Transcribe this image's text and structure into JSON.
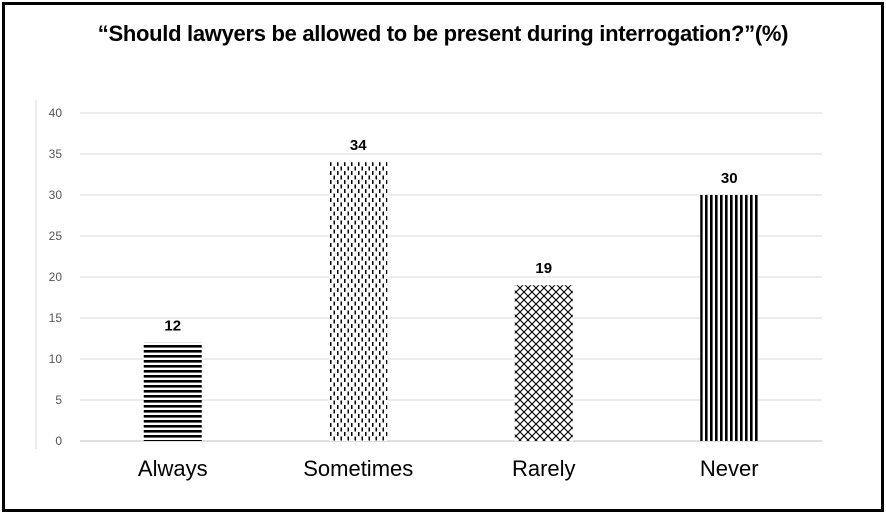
{
  "chart_data": {
    "type": "bar",
    "title": "“Should lawyers be allowed to be present during interrogation?”(%)",
    "categories": [
      "Always",
      "Sometimes",
      "Rarely",
      "Never"
    ],
    "values": [
      12,
      34,
      19,
      30
    ],
    "data_labels": [
      "12",
      "34",
      "19",
      "30"
    ],
    "xlabel": "",
    "ylabel": "",
    "ylim": [
      0,
      40
    ],
    "yticks": [
      0,
      5,
      10,
      15,
      20,
      25,
      30,
      35,
      40
    ],
    "grid": true,
    "legend": "none",
    "bar_patterns": [
      "horizontal-stripes",
      "dotted-dashes",
      "crosshatch",
      "vertical-stripes"
    ],
    "colors": {
      "bar": "#000000",
      "grid": "#d9d9d9",
      "axis": "#bfbfbf",
      "border": "#000000"
    }
  }
}
